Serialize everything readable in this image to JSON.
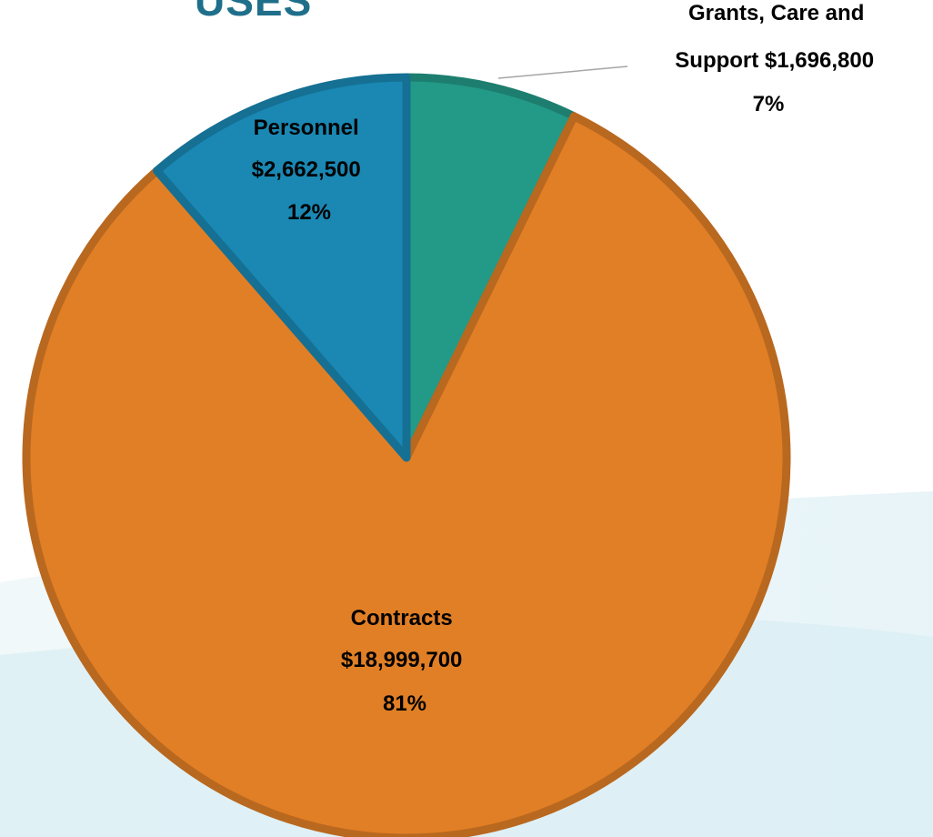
{
  "page": {
    "title_fragment": "USES"
  },
  "colors": {
    "grants": "#239a87",
    "contracts": "#e17f26",
    "personnel": "#1a88b3",
    "background_wash": "#cfe9f0"
  },
  "chart_data": {
    "type": "pie",
    "title": "USES",
    "slices": [
      {
        "name": "Grants, Care and Support",
        "value": 1696800,
        "amount_label": "$1,696,800",
        "percent_label": "7%",
        "color": "#239a87"
      },
      {
        "name": "Contracts",
        "value": 18999700,
        "amount_label": "$18,999,700",
        "percent_label": "81%",
        "color": "#e17f26"
      },
      {
        "name": "Personnel",
        "value": 2662500,
        "amount_label": "$2,662,500",
        "percent_label": "12%",
        "color": "#1a88b3"
      }
    ],
    "labels": {
      "grants": {
        "line1": "Grants, Care and",
        "line2": "Support $1,696,800",
        "line3": "7%"
      },
      "contracts": {
        "line1": "Contracts",
        "line2": "$18,999,700",
        "line3": "81%"
      },
      "personnel": {
        "line1": "Personnel",
        "line2": "$2,662,500",
        "line3": "12%"
      }
    },
    "legend": "none"
  }
}
